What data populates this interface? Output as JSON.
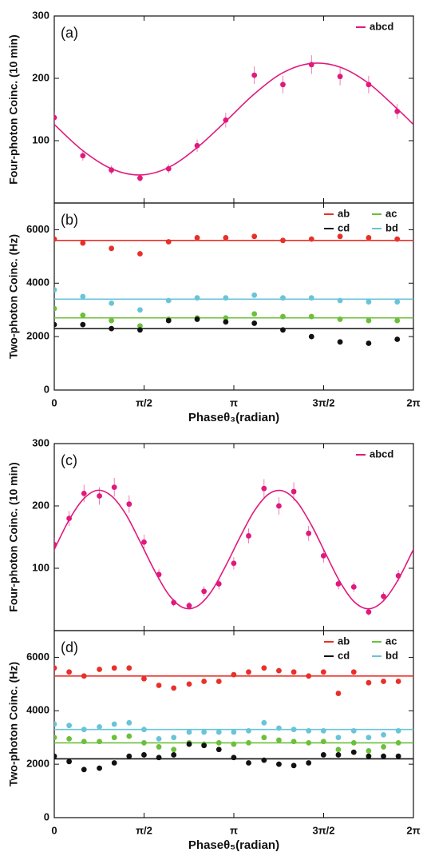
{
  "chart_data": [
    {
      "type": "scatter",
      "panel_label": "(a)",
      "ylabel": "Four-photon Coinc. (10 min)",
      "xlim": [
        0,
        6.2832
      ],
      "xticks": [
        0,
        1.5708,
        3.1416,
        4.7124,
        6.2832
      ],
      "ylim": [
        0,
        300
      ],
      "yticks": [
        100,
        200,
        300
      ],
      "legend": "upper right",
      "x": [
        0,
        0.5,
        1.0,
        1.5,
        2.0,
        2.5,
        3.0,
        3.5,
        4.0,
        4.5,
        5.0,
        5.5,
        6.0
      ],
      "series": [
        {
          "name": "abcd",
          "color": "#e0197d",
          "values": [
            137,
            76,
            53,
            40,
            55,
            92,
            133,
            205,
            190,
            222,
            203,
            190,
            147
          ],
          "errors": [
            11,
            8,
            7,
            6,
            7,
            10,
            12,
            14,
            14,
            15,
            14,
            14,
            12
          ],
          "fit": {
            "x": [
              0,
              0.5,
              1.0,
              1.5,
              2.0,
              2.5,
              3.0,
              3.5,
              4.0,
              4.5,
              5.0,
              5.5,
              6.0,
              6.2832
            ],
            "values": [
              126,
              84,
              55,
              45,
              57,
              89,
              131,
              175,
              209,
              224,
              218,
              192,
              151,
              126
            ]
          }
        }
      ]
    },
    {
      "type": "scatter",
      "panel_label": "(b)",
      "ylabel": "Two-photon Coinc. (Hz)",
      "xlabel": "Phaseθ₃(radian)",
      "xlim": [
        0,
        6.2832
      ],
      "xticks": [
        {
          "value": 0,
          "label": "0"
        },
        {
          "value": 1.5708,
          "label": "π/2"
        },
        {
          "value": 3.1416,
          "label": "π"
        },
        {
          "value": 4.7124,
          "label": "3π/2"
        },
        {
          "value": 6.2832,
          "label": "2π"
        }
      ],
      "ylim": [
        0,
        7000
      ],
      "yticks": [
        0,
        2000,
        4000,
        6000
      ],
      "legend": "upper right",
      "x": [
        0,
        0.5,
        1.0,
        1.5,
        2.0,
        2.5,
        3.0,
        3.5,
        4.0,
        4.5,
        5.0,
        5.5,
        6.0
      ],
      "series": [
        {
          "name": "ab",
          "color": "#e8302a",
          "fit_level": 5600,
          "values": [
            5650,
            5500,
            5300,
            5100,
            5550,
            5700,
            5700,
            5750,
            5600,
            5650,
            5750,
            5700,
            5650
          ]
        },
        {
          "name": "ac",
          "color": "#6cbf3c",
          "fit_level": 2700,
          "values": [
            3050,
            2800,
            2600,
            2400,
            2650,
            2700,
            2700,
            2850,
            2750,
            2750,
            2650,
            2600,
            2600
          ]
        },
        {
          "name": "cd",
          "color": "#111111",
          "fit_level": 2300,
          "values": [
            2450,
            2450,
            2300,
            2250,
            2600,
            2650,
            2550,
            2500,
            2250,
            2000,
            1800,
            1750,
            1900
          ]
        },
        {
          "name": "bd",
          "color": "#6ac4d8",
          "fit_level": 3400,
          "values": [
            3750,
            3500,
            3250,
            3000,
            3350,
            3450,
            3450,
            3550,
            3450,
            3450,
            3350,
            3300,
            3300
          ]
        }
      ]
    },
    {
      "type": "scatter",
      "panel_label": "(c)",
      "ylabel": "Four-photon Coinc. (10 min)",
      "xlim": [
        0,
        6.2832
      ],
      "xticks": [
        0,
        1.5708,
        3.1416,
        4.7124,
        6.2832
      ],
      "ylim": [
        0,
        300
      ],
      "yticks": [
        100,
        200,
        300
      ],
      "legend": "upper right",
      "x": [
        0,
        0.26,
        0.52,
        0.79,
        1.05,
        1.31,
        1.57,
        1.83,
        2.09,
        2.36,
        2.62,
        2.88,
        3.14,
        3.4,
        3.67,
        3.93,
        4.19,
        4.45,
        4.71,
        4.97,
        5.24,
        5.5,
        5.76,
        6.02
      ],
      "series": [
        {
          "name": "abcd",
          "color": "#e0197d",
          "values": [
            138,
            180,
            220,
            216,
            230,
            203,
            142,
            90,
            45,
            40,
            63,
            75,
            108,
            152,
            228,
            200,
            223,
            156,
            120,
            75,
            70,
            30,
            55,
            88
          ],
          "errors": [
            11,
            12,
            14,
            14,
            15,
            14,
            12,
            9,
            6,
            6,
            8,
            9,
            10,
            12,
            15,
            14,
            15,
            12,
            11,
            9,
            8,
            6,
            7,
            9
          ],
          "fit": {
            "x": [
              0,
              0.25,
              0.5,
              0.75,
              1.0,
              1.25,
              1.5,
              1.75,
              2.0,
              2.25,
              2.5,
              2.75,
              3.0,
              3.25,
              3.5,
              3.75,
              4.0,
              4.25,
              4.5,
              4.75,
              5.0,
              5.25,
              5.5,
              5.75,
              6.0,
              6.25,
              6.2832
            ],
            "values": [
              130,
              176,
              210,
              225,
              216,
              187,
              143,
              97,
              58,
              37,
              39,
              63,
              104,
              150,
              192,
              219,
              224,
              206,
              169,
              123,
              78,
              46,
              35,
              47,
              79,
              124,
              130
            ]
          }
        }
      ]
    },
    {
      "type": "scatter",
      "panel_label": "(d)",
      "ylabel": "Two-photon Coinc. (Hz)",
      "xlabel": "Phaseθ₅(radian)",
      "xlim": [
        0,
        6.2832
      ],
      "xticks": [
        {
          "value": 0,
          "label": "0"
        },
        {
          "value": 1.5708,
          "label": "π/2"
        },
        {
          "value": 3.1416,
          "label": "π"
        },
        {
          "value": 4.7124,
          "label": "3π/2"
        },
        {
          "value": 6.2832,
          "label": "2π"
        }
      ],
      "ylim": [
        0,
        7000
      ],
      "yticks": [
        0,
        2000,
        4000,
        6000
      ],
      "legend": "upper right",
      "x": [
        0,
        0.26,
        0.52,
        0.79,
        1.05,
        1.31,
        1.57,
        1.83,
        2.09,
        2.36,
        2.62,
        2.88,
        3.14,
        3.4,
        3.67,
        3.93,
        4.19,
        4.45,
        4.71,
        4.97,
        5.24,
        5.5,
        5.76,
        6.02
      ],
      "series": [
        {
          "name": "ab",
          "color": "#e8302a",
          "fit_level": 5300,
          "values": [
            5600,
            5450,
            5300,
            5550,
            5600,
            5600,
            5200,
            4950,
            4850,
            5000,
            5100,
            5100,
            5350,
            5450,
            5600,
            5500,
            5450,
            5300,
            5450,
            4650,
            5450,
            5050,
            5100,
            5100
          ]
        },
        {
          "name": "ac",
          "color": "#6cbf3c",
          "fit_level": 2800,
          "values": [
            3000,
            2950,
            2850,
            2850,
            3000,
            3050,
            2800,
            2650,
            2550,
            2800,
            2750,
            2800,
            2750,
            2800,
            3000,
            2900,
            2850,
            2800,
            2850,
            2550,
            2800,
            2500,
            2650,
            2800
          ]
        },
        {
          "name": "cd",
          "color": "#111111",
          "fit_level": 2200,
          "values": [
            2300,
            2100,
            1800,
            1850,
            2050,
            2300,
            2350,
            2250,
            2350,
            2750,
            2700,
            2550,
            2250,
            2050,
            2150,
            2000,
            1950,
            2050,
            2350,
            2350,
            2450,
            2300,
            2300,
            2300
          ]
        },
        {
          "name": "bd",
          "color": "#6ac4d8",
          "fit_level": 3300,
          "values": [
            3500,
            3450,
            3300,
            3400,
            3500,
            3550,
            3300,
            2950,
            3000,
            3200,
            3200,
            3200,
            3200,
            3250,
            3550,
            3350,
            3300,
            3250,
            3250,
            3000,
            3250,
            3000,
            3100,
            3250
          ]
        }
      ]
    }
  ]
}
